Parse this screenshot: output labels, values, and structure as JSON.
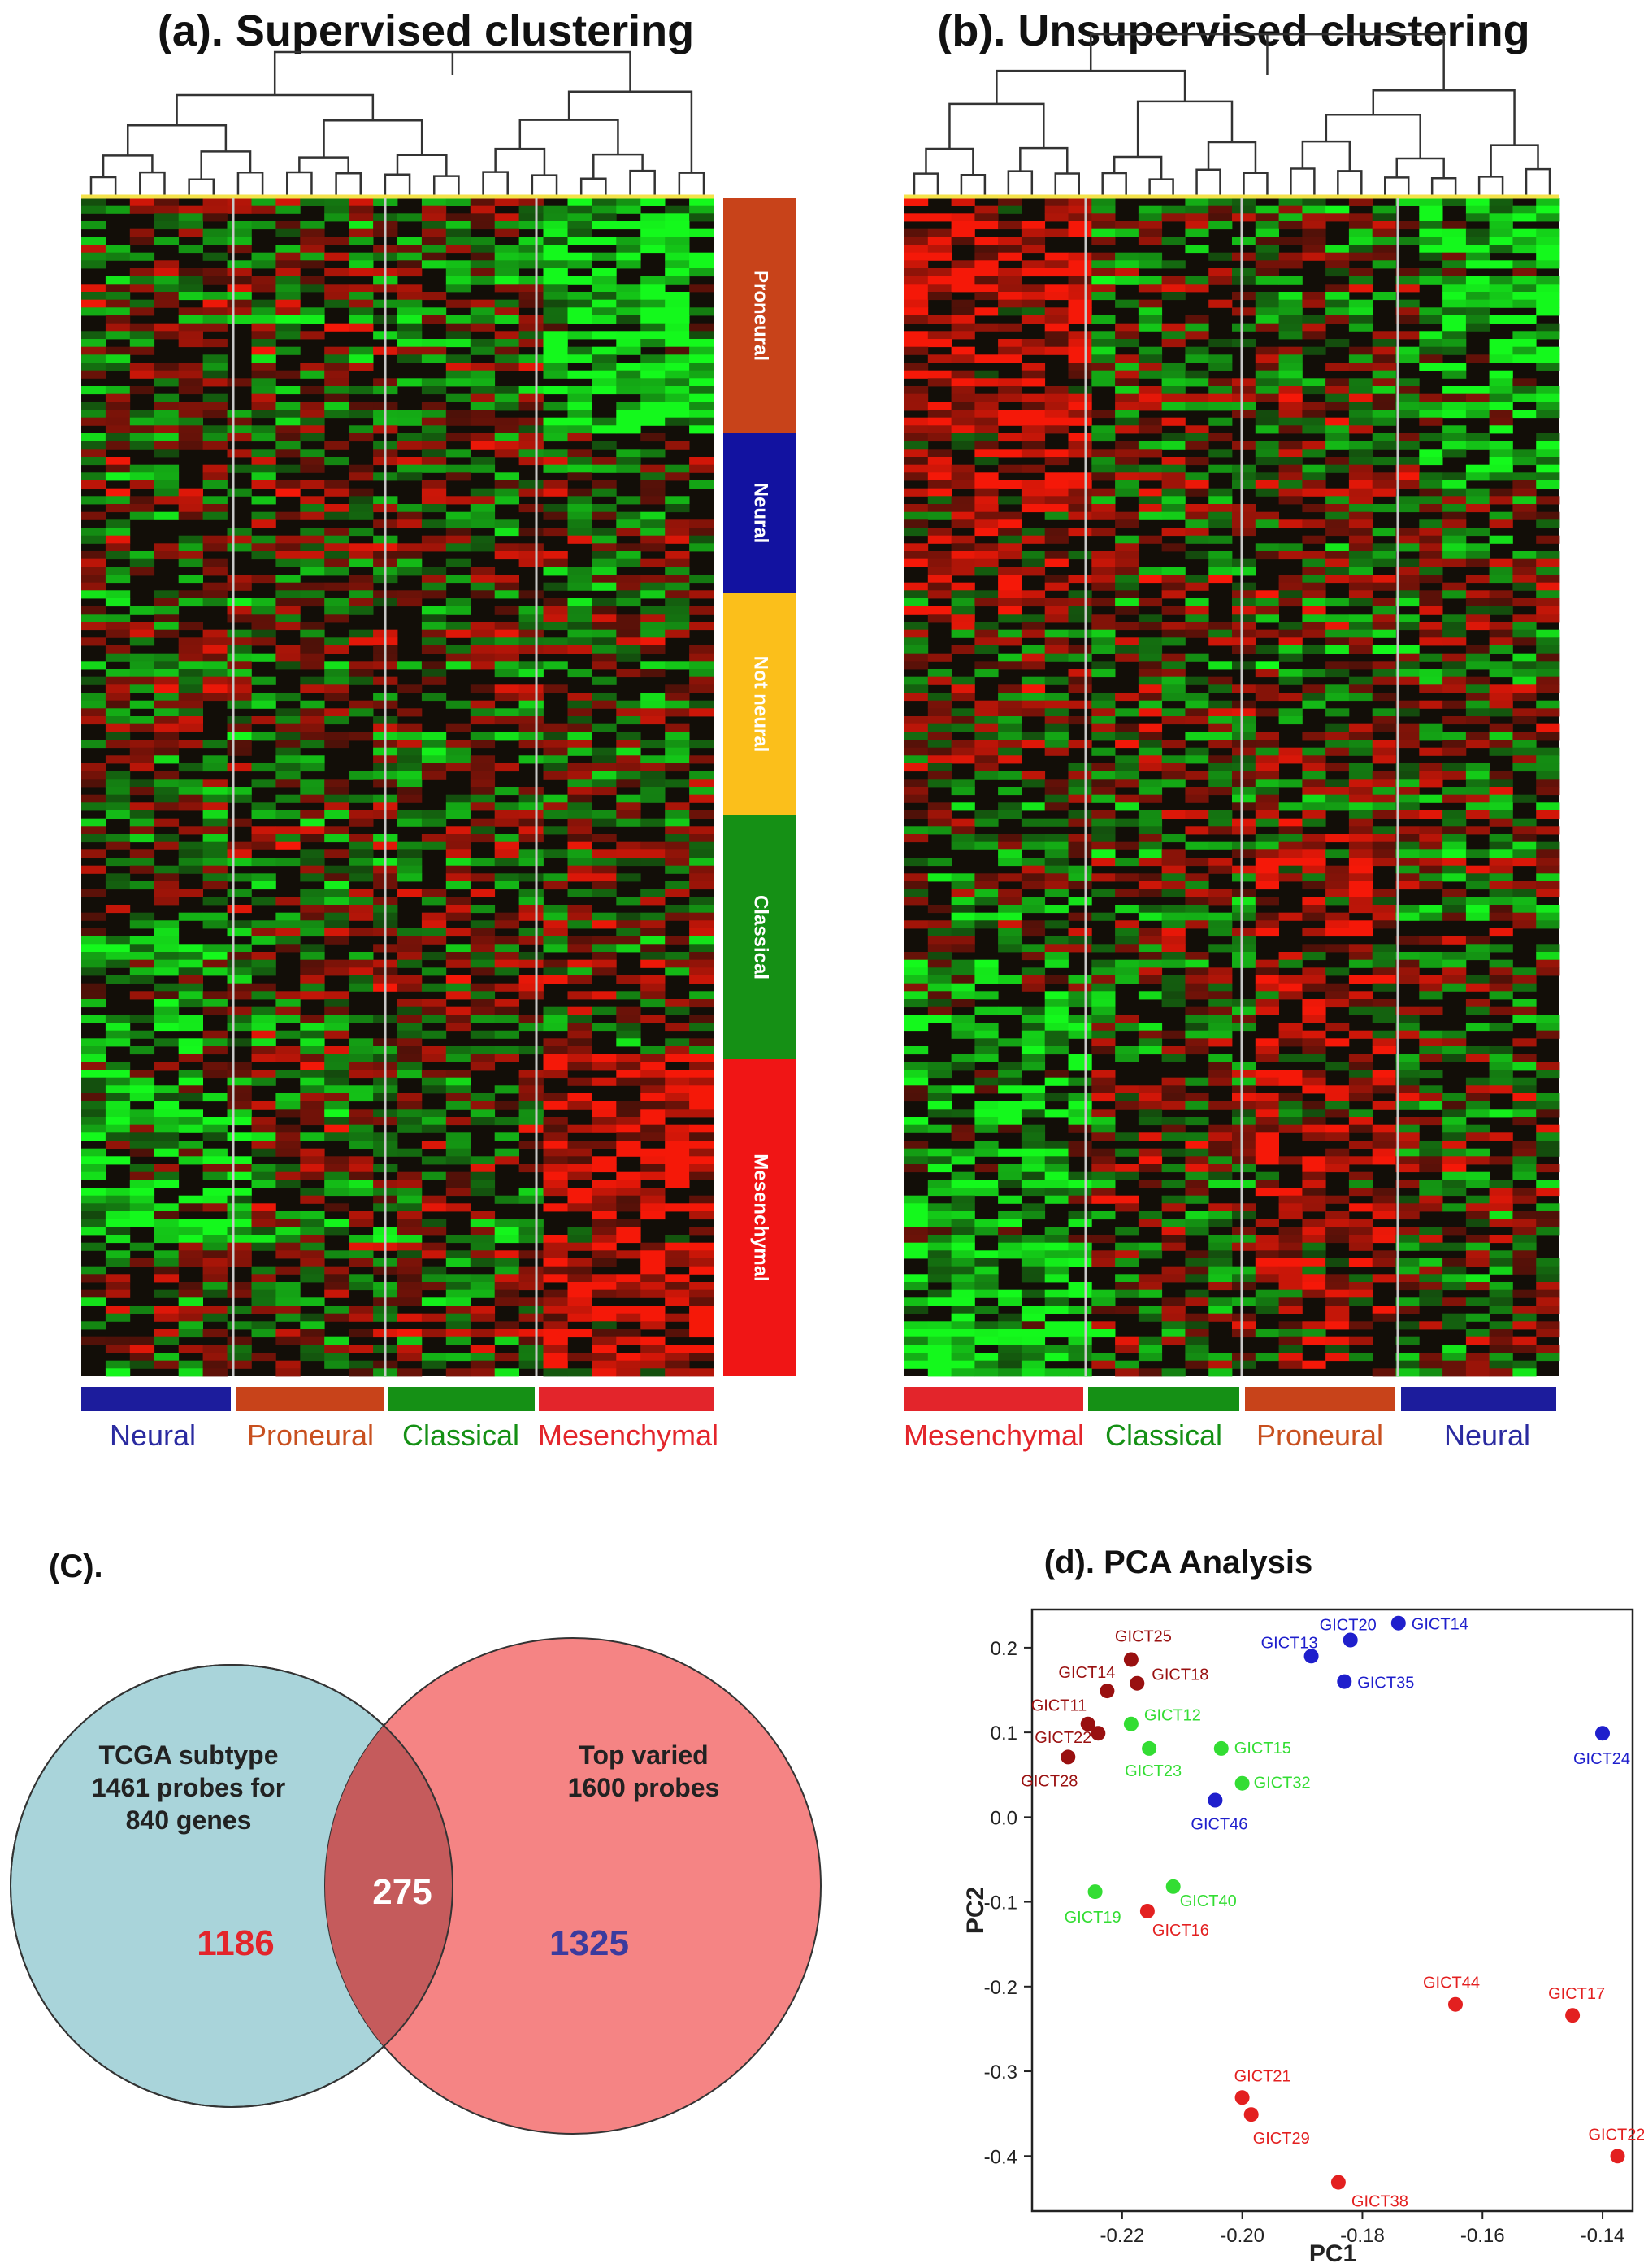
{
  "panel_a": {
    "title": "(a). Supervised clustering",
    "groups": [
      {
        "label": "Neural",
        "color": "#1c1c9c",
        "text_color": "#2a2aa0"
      },
      {
        "label": "Proneural",
        "color": "#c8431a",
        "text_color": "#c8501f"
      },
      {
        "label": "Classical",
        "color": "#159015",
        "text_color": "#159015"
      },
      {
        "label": "Mesenchymal",
        "color": "#e3252b",
        "text_color": "#e3252b"
      }
    ],
    "side_bar": [
      {
        "label": "Proneural",
        "color": "#c8431a"
      },
      {
        "label": "Neural",
        "color": "#1212a0"
      },
      {
        "label": "Not neural",
        "color": "#fbbf1b"
      },
      {
        "label": "Classical",
        "color": "#159015"
      },
      {
        "label": "Mesenchymal",
        "color": "#f01515"
      }
    ]
  },
  "panel_b": {
    "title": "(b). Unsupervised clustering",
    "groups": [
      {
        "label": "Mesenchymal",
        "color": "#e3252b",
        "text_color": "#e3252b"
      },
      {
        "label": "Classical",
        "color": "#159015",
        "text_color": "#159015"
      },
      {
        "label": "Proneural",
        "color": "#c8431a",
        "text_color": "#c8501f"
      },
      {
        "label": "Neural",
        "color": "#1c1c9c",
        "text_color": "#2a2aa0"
      }
    ]
  },
  "panel_c": {
    "title": "(C).",
    "left_label": [
      "TCGA subtype",
      "1461 probes for",
      "840 genes"
    ],
    "right_label": [
      "Top varied",
      "1600 probes"
    ],
    "left_only": "1186",
    "overlap": "275",
    "right_only": "1325",
    "left_color": "#a9d4da",
    "right_color": "#f47a79",
    "left_only_color": "#e3252b",
    "right_only_color": "#3b3b9e"
  },
  "colors": {
    "red": "#e32020",
    "dark_red": "#991010",
    "green": "#33dd33",
    "blue": "#1f1fcc"
  },
  "chart_data": {
    "type": "scatter",
    "title": "(d). PCA Analysis",
    "xlabel": "PC1",
    "ylabel": "PC2",
    "xlim": [
      -0.235,
      -0.135
    ],
    "ylim": [
      -0.465,
      0.245
    ],
    "xticks": [
      "-0.22",
      "-0.20",
      "-0.18",
      "-0.16",
      "-0.14"
    ],
    "xtick_values": [
      -0.22,
      -0.2,
      -0.18,
      -0.16,
      -0.14
    ],
    "yticks": [
      "0.2",
      "0.1",
      "0.0",
      "-0.1",
      "-0.2",
      "-0.3",
      "-0.4"
    ],
    "ytick_values": [
      0.2,
      0.1,
      0.0,
      -0.1,
      -0.2,
      -0.3,
      -0.4
    ],
    "points": [
      {
        "label": "GICT25",
        "x": -0.2185,
        "y": 0.186,
        "group": "dark_red"
      },
      {
        "label": "GICT14",
        "x": -0.2225,
        "y": 0.149,
        "group": "dark_red"
      },
      {
        "label": "GICT18",
        "x": -0.2175,
        "y": 0.158,
        "group": "dark_red"
      },
      {
        "label": "GICT11",
        "x": -0.2257,
        "y": 0.11,
        "group": "dark_red"
      },
      {
        "label": "GICT22",
        "x": -0.224,
        "y": 0.099,
        "group": "dark_red"
      },
      {
        "label": "GICT28",
        "x": -0.229,
        "y": 0.071,
        "group": "dark_red"
      },
      {
        "label": "GICT12",
        "x": -0.2185,
        "y": 0.11,
        "group": "green"
      },
      {
        "label": "GICT23",
        "x": -0.2155,
        "y": 0.081,
        "group": "green"
      },
      {
        "label": "GICT15",
        "x": -0.2035,
        "y": 0.081,
        "group": "green"
      },
      {
        "label": "GICT32",
        "x": -0.2,
        "y": 0.04,
        "group": "green"
      },
      {
        "label": "GICT19",
        "x": -0.2245,
        "y": -0.088,
        "group": "green"
      },
      {
        "label": "GICT40",
        "x": -0.2115,
        "y": -0.082,
        "group": "green"
      },
      {
        "label": "GICT16",
        "x": -0.2158,
        "y": -0.111,
        "group": "red"
      },
      {
        "label": "GICT20",
        "x": -0.182,
        "y": 0.209,
        "group": "blue"
      },
      {
        "label": "GICT14",
        "x": -0.174,
        "y": 0.229,
        "group": "blue"
      },
      {
        "label": "GICT13",
        "x": -0.1885,
        "y": 0.19,
        "group": "blue"
      },
      {
        "label": "GICT35",
        "x": -0.183,
        "y": 0.16,
        "group": "blue"
      },
      {
        "label": "GICT46",
        "x": -0.2045,
        "y": 0.02,
        "group": "blue"
      },
      {
        "label": "GICT24",
        "x": -0.14,
        "y": 0.099,
        "group": "blue"
      },
      {
        "label": "GICT44",
        "x": -0.1645,
        "y": -0.221,
        "group": "red"
      },
      {
        "label": "GICT17",
        "x": -0.145,
        "y": -0.234,
        "group": "red"
      },
      {
        "label": "GICT21",
        "x": -0.2,
        "y": -0.331,
        "group": "red"
      },
      {
        "label": "GICT29",
        "x": -0.1985,
        "y": -0.351,
        "group": "red"
      },
      {
        "label": "GICT38",
        "x": -0.184,
        "y": -0.431,
        "group": "red"
      },
      {
        "label": "GICT22",
        "x": -0.1375,
        "y": -0.4,
        "group": "red"
      }
    ]
  }
}
